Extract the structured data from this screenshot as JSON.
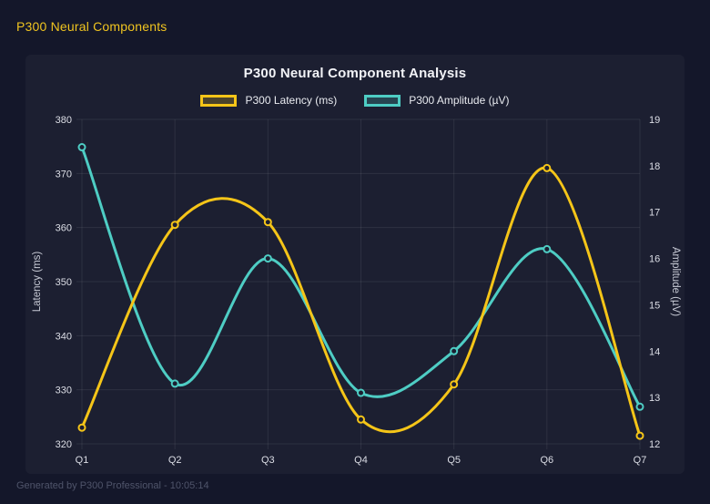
{
  "page": {
    "header_title": "P300 Neural Components",
    "footer_text": "Generated by P300 Professional - 10:05:14"
  },
  "colors": {
    "page_bg": "#14172a",
    "card_bg": "#1c1f31",
    "grid": "rgba(255,255,255,0.08)",
    "tick_text": "#dcdee6",
    "axis_title_text": "#c7cad5",
    "title_text": "#f2f3f7",
    "header_text": "#f0c420",
    "footer_text": "#4f546a",
    "latency_color": "#f5c518",
    "amplitude_color": "#4ecdc4"
  },
  "chart_data": {
    "type": "line",
    "title": "P300 Neural Component Analysis",
    "categories": [
      "Q1",
      "Q2",
      "Q3",
      "Q4",
      "Q5",
      "Q6",
      "Q7"
    ],
    "series": [
      {
        "name": "P300 Latency (ms)",
        "axis": "left",
        "color": "#f5c518",
        "values": [
          323,
          360.5,
          361,
          324.5,
          331,
          371,
          321.5
        ]
      },
      {
        "name": "P300 Amplitude (µV)",
        "axis": "right",
        "color": "#4ecdc4",
        "values": [
          18.4,
          13.3,
          16.0,
          13.1,
          14.0,
          16.2,
          12.8
        ]
      }
    ],
    "left_axis": {
      "label": "Latency (ms)",
      "min": 320,
      "max": 380,
      "step": 10
    },
    "right_axis": {
      "label": "Amplitude (µV)",
      "min": 12,
      "max": 19,
      "step": 1
    },
    "grid": true,
    "legend_position": "top",
    "curve": "smooth"
  }
}
